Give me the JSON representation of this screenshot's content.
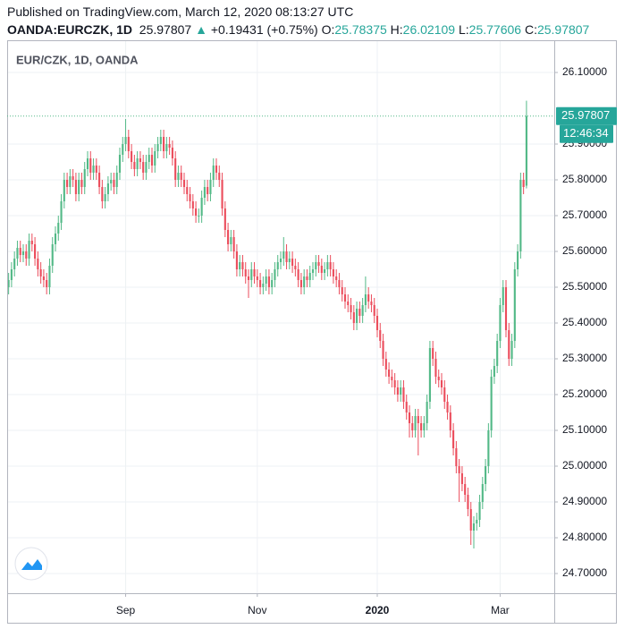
{
  "header": {
    "published": "Published on TradingView.com, March 12, 2020 08:13:27 UTC",
    "symbol": "OANDA:EURCZK, 1D",
    "last": "25.97807",
    "arrow": "▲",
    "change": "+0.19431 (+0.75%)",
    "o_label": "O:",
    "o": "25.78375",
    "h_label": "H:",
    "h": "26.02109",
    "l_label": "L:",
    "l": "25.77606",
    "c_label": "C:",
    "c": "25.97807"
  },
  "chart_data": {
    "type": "candlestick",
    "title": "EUR/CZK, 1D, OANDA",
    "up_color": "#53b987",
    "down_color": "#eb4d5c",
    "grid": true,
    "price_label": "25.97807",
    "countdown": "12:46:34",
    "xlim": [
      -0.5,
      186.5
    ],
    "xticks": [
      {
        "value": 40,
        "label": "Sep"
      },
      {
        "value": 85,
        "label": "Nov"
      },
      {
        "value": 126,
        "label": "2020"
      },
      {
        "value": 168,
        "label": "Mar"
      }
    ],
    "ylim": [
      24.645,
      26.19
    ],
    "yticks": [
      {
        "value": 24.7,
        "label": "24.70000"
      },
      {
        "value": 24.8,
        "label": "24.80000"
      },
      {
        "value": 24.9,
        "label": "24.90000"
      },
      {
        "value": 25.0,
        "label": "25.00000"
      },
      {
        "value": 25.1,
        "label": "25.10000"
      },
      {
        "value": 25.2,
        "label": "25.20000"
      },
      {
        "value": 25.3,
        "label": "25.30000"
      },
      {
        "value": 25.4,
        "label": "25.40000"
      },
      {
        "value": 25.5,
        "label": "25.50000"
      },
      {
        "value": 25.6,
        "label": "25.60000"
      },
      {
        "value": 25.7,
        "label": "25.70000"
      },
      {
        "value": 25.8,
        "label": "25.80000"
      },
      {
        "value": 25.9,
        "label": "25.90000"
      },
      {
        "value": 26.1,
        "label": "26.10000"
      }
    ],
    "open": [
      25.5,
      25.52,
      25.55,
      25.58,
      25.61,
      25.59,
      25.6,
      25.58,
      25.63,
      25.62,
      25.58,
      25.55,
      25.53,
      25.52,
      25.5,
      25.56,
      25.62,
      25.65,
      25.68,
      25.74,
      25.8,
      25.78,
      25.81,
      25.8,
      25.76,
      25.8,
      25.78,
      25.83,
      25.86,
      25.82,
      25.84,
      25.82,
      25.78,
      25.74,
      25.76,
      25.79,
      25.8,
      25.78,
      25.82,
      25.87,
      25.9,
      25.92,
      25.88,
      25.85,
      25.83,
      25.86,
      25.85,
      25.82,
      25.85,
      25.87,
      25.84,
      25.88,
      25.9,
      25.92,
      25.88,
      25.9,
      25.89,
      25.86,
      25.8,
      25.82,
      25.8,
      25.78,
      25.76,
      25.74,
      25.72,
      25.7,
      25.7,
      25.75,
      25.78,
      25.76,
      25.8,
      25.84,
      25.82,
      25.8,
      25.72,
      25.66,
      25.62,
      25.64,
      25.6,
      25.55,
      25.57,
      25.55,
      25.53,
      25.52,
      25.55,
      25.53,
      25.52,
      25.5,
      25.51,
      25.53,
      25.5,
      25.52,
      25.55,
      25.57,
      25.58,
      25.6,
      25.57,
      25.58,
      25.56,
      25.55,
      25.52,
      25.5,
      25.53,
      25.52,
      25.54,
      25.55,
      25.57,
      25.56,
      25.54,
      25.55,
      25.57,
      25.55,
      25.53,
      25.52,
      25.5,
      25.48,
      25.46,
      25.45,
      25.43,
      25.4,
      25.44,
      25.42,
      25.45,
      25.48,
      25.46,
      25.45,
      25.42,
      25.38,
      25.35,
      25.3,
      25.27,
      25.25,
      25.24,
      25.22,
      25.2,
      25.22,
      25.18,
      25.15,
      25.12,
      25.1,
      25.14,
      25.12,
      25.1,
      25.12,
      25.18,
      25.33,
      25.3,
      25.25,
      25.24,
      25.22,
      25.18,
      25.15,
      25.1,
      25.05,
      25.0,
      24.98,
      24.95,
      24.92,
      24.88,
      24.82,
      24.84,
      24.85,
      24.9,
      24.95,
      25.0,
      25.1,
      25.25,
      25.28,
      25.35,
      25.45,
      25.5,
      25.38,
      25.3,
      25.35,
      25.55,
      25.6,
      25.8,
      25.78375
    ],
    "high": [
      25.54,
      25.57,
      25.6,
      25.63,
      25.63,
      25.62,
      25.62,
      25.65,
      25.65,
      25.64,
      25.6,
      25.57,
      25.55,
      25.54,
      25.58,
      25.64,
      25.67,
      25.7,
      25.76,
      25.82,
      25.82,
      25.83,
      25.83,
      25.82,
      25.82,
      25.82,
      25.85,
      25.88,
      25.88,
      25.86,
      25.86,
      25.84,
      25.8,
      25.78,
      25.81,
      25.82,
      25.82,
      25.84,
      25.89,
      25.92,
      25.97,
      25.94,
      25.9,
      25.87,
      25.88,
      25.88,
      25.87,
      25.87,
      25.89,
      25.89,
      25.9,
      25.92,
      25.94,
      25.94,
      25.92,
      25.92,
      25.91,
      25.88,
      25.84,
      25.84,
      25.82,
      25.8,
      25.78,
      25.76,
      25.74,
      25.72,
      25.77,
      25.8,
      25.8,
      25.82,
      25.86,
      25.86,
      25.84,
      25.82,
      25.74,
      25.68,
      25.66,
      25.66,
      25.62,
      25.59,
      25.59,
      25.57,
      25.55,
      25.57,
      25.57,
      25.55,
      25.54,
      25.53,
      25.55,
      25.55,
      25.54,
      25.57,
      25.59,
      25.6,
      25.64,
      25.62,
      25.6,
      25.6,
      25.58,
      25.57,
      25.54,
      25.55,
      25.55,
      25.56,
      25.57,
      25.59,
      25.59,
      25.58,
      25.57,
      25.59,
      25.59,
      25.57,
      25.55,
      25.54,
      25.52,
      25.5,
      25.48,
      25.47,
      25.45,
      25.46,
      25.46,
      25.47,
      25.53,
      25.5,
      25.48,
      25.47,
      25.44,
      25.4,
      25.37,
      25.32,
      25.29,
      25.27,
      25.26,
      25.24,
      25.24,
      25.24,
      25.2,
      25.17,
      25.14,
      25.16,
      25.16,
      25.14,
      25.14,
      25.2,
      25.35,
      25.35,
      25.32,
      25.27,
      25.26,
      25.24,
      25.2,
      25.17,
      25.12,
      25.07,
      25.02,
      25.0,
      24.97,
      24.94,
      24.9,
      24.86,
      24.87,
      24.92,
      24.97,
      25.02,
      25.12,
      25.27,
      25.3,
      25.37,
      25.47,
      25.52,
      25.52,
      25.4,
      25.37,
      25.57,
      25.62,
      25.82,
      25.82,
      26.02109
    ],
    "low": [
      25.48,
      25.5,
      25.53,
      25.56,
      25.57,
      25.57,
      25.56,
      25.56,
      25.6,
      25.56,
      25.53,
      25.51,
      25.5,
      25.48,
      25.48,
      25.54,
      25.6,
      25.63,
      25.66,
      25.72,
      25.76,
      25.76,
      25.78,
      25.74,
      25.74,
      25.76,
      25.76,
      25.81,
      25.8,
      25.8,
      25.8,
      25.76,
      25.72,
      25.72,
      25.74,
      25.77,
      25.76,
      25.76,
      25.8,
      25.85,
      25.88,
      25.86,
      25.83,
      25.81,
      25.81,
      25.83,
      25.8,
      25.8,
      25.83,
      25.82,
      25.82,
      25.86,
      25.88,
      25.86,
      25.86,
      25.87,
      25.84,
      25.78,
      25.78,
      25.78,
      25.76,
      25.74,
      25.72,
      25.7,
      25.68,
      25.68,
      25.68,
      25.73,
      25.74,
      25.74,
      25.78,
      25.8,
      25.78,
      25.7,
      25.64,
      25.6,
      25.6,
      25.58,
      25.53,
      25.53,
      25.53,
      25.51,
      25.47,
      25.5,
      25.51,
      25.5,
      25.48,
      25.48,
      25.49,
      25.48,
      25.48,
      25.5,
      25.53,
      25.55,
      25.56,
      25.55,
      25.55,
      25.54,
      25.53,
      25.5,
      25.48,
      25.48,
      25.5,
      25.5,
      25.52,
      25.53,
      25.54,
      25.52,
      25.52,
      25.53,
      25.53,
      25.51,
      25.5,
      25.48,
      25.46,
      25.44,
      25.43,
      25.41,
      25.38,
      25.38,
      25.4,
      25.4,
      25.43,
      25.44,
      25.43,
      25.4,
      25.36,
      25.33,
      25.28,
      25.25,
      25.23,
      25.22,
      25.2,
      25.18,
      25.18,
      25.16,
      25.13,
      25.08,
      25.08,
      25.08,
      25.03,
      25.08,
      25.08,
      25.1,
      25.16,
      25.28,
      25.23,
      25.22,
      25.2,
      25.16,
      25.13,
      25.08,
      25.03,
      24.98,
      24.9,
      24.93,
      24.9,
      24.86,
      24.78,
      24.77,
      24.82,
      24.83,
      24.88,
      24.93,
      24.98,
      25.08,
      25.23,
      25.26,
      25.33,
      25.43,
      25.36,
      25.28,
      25.28,
      25.33,
      25.53,
      25.58,
      25.76,
      25.77606
    ],
    "close": [
      25.52,
      25.55,
      25.58,
      25.61,
      25.59,
      25.6,
      25.58,
      25.63,
      25.62,
      25.58,
      25.55,
      25.53,
      25.52,
      25.5,
      25.56,
      25.62,
      25.65,
      25.68,
      25.74,
      25.8,
      25.78,
      25.81,
      25.8,
      25.76,
      25.8,
      25.78,
      25.83,
      25.86,
      25.82,
      25.84,
      25.82,
      25.78,
      25.74,
      25.76,
      25.79,
      25.8,
      25.78,
      25.82,
      25.87,
      25.9,
      25.92,
      25.88,
      25.85,
      25.83,
      25.86,
      25.85,
      25.82,
      25.85,
      25.87,
      25.84,
      25.88,
      25.9,
      25.92,
      25.88,
      25.9,
      25.89,
      25.86,
      25.8,
      25.82,
      25.8,
      25.78,
      25.76,
      25.74,
      25.72,
      25.7,
      25.7,
      25.75,
      25.78,
      25.76,
      25.8,
      25.84,
      25.82,
      25.8,
      25.72,
      25.66,
      25.62,
      25.64,
      25.6,
      25.55,
      25.57,
      25.55,
      25.53,
      25.52,
      25.55,
      25.53,
      25.52,
      25.5,
      25.51,
      25.53,
      25.5,
      25.52,
      25.55,
      25.57,
      25.58,
      25.6,
      25.57,
      25.58,
      25.56,
      25.55,
      25.52,
      25.5,
      25.53,
      25.52,
      25.54,
      25.55,
      25.57,
      25.56,
      25.54,
      25.55,
      25.57,
      25.55,
      25.53,
      25.52,
      25.5,
      25.48,
      25.46,
      25.45,
      25.43,
      25.4,
      25.44,
      25.42,
      25.45,
      25.48,
      25.46,
      25.45,
      25.42,
      25.38,
      25.35,
      25.3,
      25.27,
      25.25,
      25.24,
      25.22,
      25.2,
      25.22,
      25.18,
      25.15,
      25.12,
      25.1,
      25.14,
      25.12,
      25.1,
      25.12,
      25.18,
      25.33,
      25.3,
      25.25,
      25.24,
      25.22,
      25.18,
      25.15,
      25.1,
      25.05,
      25.0,
      24.98,
      24.95,
      24.92,
      24.88,
      24.82,
      24.84,
      24.85,
      24.9,
      24.95,
      25.0,
      25.1,
      25.25,
      25.28,
      25.35,
      25.45,
      25.5,
      25.38,
      25.3,
      25.35,
      25.55,
      25.6,
      25.8,
      25.78,
      25.97807
    ]
  }
}
